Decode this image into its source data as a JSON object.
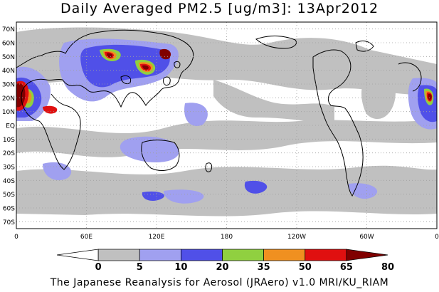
{
  "title": "Daily Averaged PM2.5 [ug/m3]: 13Apr2012",
  "footer": "The Japanese Reanalysis for Aerosol (JRAero) v1.0 MRI/KU_RIAM",
  "map": {
    "lat_labels": [
      "70N",
      "60N",
      "50N",
      "40N",
      "30N",
      "20N",
      "10N",
      "EQ",
      "10S",
      "20S",
      "30S",
      "40S",
      "50S",
      "60S",
      "70S"
    ],
    "lon_labels": [
      "0",
      "60E",
      "120E",
      "180",
      "120W",
      "60W",
      "0"
    ],
    "ocean_color": "#ffffff",
    "coast_color": "#000000",
    "grid_color": "#a0a0a0"
  },
  "colorbar": {
    "boundaries": [
      "0",
      "5",
      "10",
      "20",
      "35",
      "50",
      "65",
      "80"
    ],
    "colors": [
      "#ffffff",
      "#c0c0c0",
      "#a0a0f0",
      "#5050e8",
      "#90d040",
      "#f09020",
      "#e01010",
      "#800000"
    ],
    "low_arrow_color": "#ffffff",
    "high_arrow_color": "#800000"
  },
  "plumes": {
    "c5": "#c0c0c0",
    "c10": "#a0a0f0",
    "c20": "#5050e8",
    "c35": "#90d040",
    "c50": "#f09020",
    "c65": "#e01010",
    "c80": "#800000"
  }
}
